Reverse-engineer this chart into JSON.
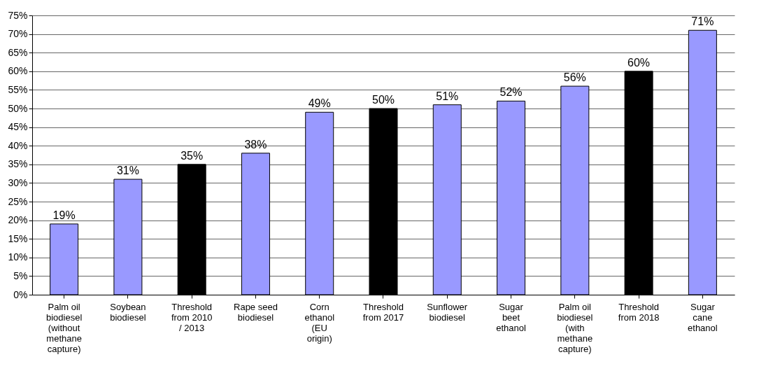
{
  "chart_data": {
    "type": "bar",
    "categories": [
      "Palm oil biodiesel (without methane capture)",
      "Soybean biodiesel",
      "Threshold from 2010 / 2013",
      "Rape seed biodiesel",
      "Corn ethanol (EU origin)",
      "Threshold from 2017",
      "Sunflower biodiesel",
      "Sugar beet ethanol",
      "Palm oil biodiesel (with methane capture)",
      "Threshold from 2018",
      "Sugar cane ethanol"
    ],
    "values": [
      19,
      31,
      35,
      38,
      49,
      50,
      51,
      52,
      56,
      60,
      71
    ],
    "colors": [
      "#9999ff",
      "#9999ff",
      "#000000",
      "#9999ff",
      "#9999ff",
      "#000000",
      "#9999ff",
      "#9999ff",
      "#9999ff",
      "#000000",
      "#9999ff"
    ],
    "value_labels": [
      "19%",
      "31%",
      "35%",
      "38%",
      "49%",
      "50%",
      "51%",
      "52%",
      "56%",
      "60%",
      "71%"
    ],
    "ylim": [
      0,
      75
    ],
    "yticks": [
      {
        "value": 0,
        "label": "0%"
      },
      {
        "value": 5,
        "label": "5%"
      },
      {
        "value": 10,
        "label": "10%"
      },
      {
        "value": 15,
        "label": "15%"
      },
      {
        "value": 20,
        "label": "20%"
      },
      {
        "value": 25,
        "label": "25%"
      },
      {
        "value": 30,
        "label": "30%"
      },
      {
        "value": 35,
        "label": "35%"
      },
      {
        "value": 40,
        "label": "40%"
      },
      {
        "value": 45,
        "label": "45%"
      },
      {
        "value": 50,
        "label": "50%"
      },
      {
        "value": 55,
        "label": "55%"
      },
      {
        "value": 60,
        "label": "60%"
      },
      {
        "value": 65,
        "label": "65%"
      },
      {
        "value": 70,
        "label": "70%"
      },
      {
        "value": 75,
        "label": "75%"
      }
    ],
    "grid": "y"
  }
}
